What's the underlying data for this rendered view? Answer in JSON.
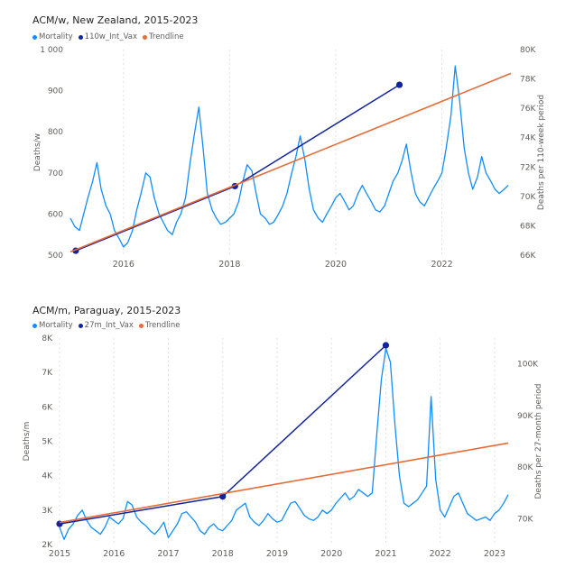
{
  "charts": [
    {
      "title": "ACM/w, New Zealand, 2015-2023",
      "legend": [
        {
          "label": "Mortality",
          "color": "#118DFF"
        },
        {
          "label": "110w_Int_Vax",
          "color": "#12239E"
        },
        {
          "label": "Trendline",
          "color": "#E66C37"
        }
      ]
    },
    {
      "title": "ACM/m, Paraguay, 2015-2023",
      "legend": [
        {
          "label": "Mortality",
          "color": "#118DFF"
        },
        {
          "label": "27m_Int_Vax",
          "color": "#12239E"
        },
        {
          "label": "Trendline",
          "color": "#E66C37"
        }
      ]
    }
  ],
  "chart_data": [
    {
      "type": "line",
      "title": "ACM/w, New Zealand, 2015-2023",
      "ylabel": "Deaths/w",
      "y2label": "Deaths per 110-week period",
      "ylim": [
        500,
        1000
      ],
      "y2lim": [
        66000,
        80000
      ],
      "xlim": [
        2015.0,
        2023.3
      ],
      "x_ticks": [
        "2016",
        "2018",
        "2020",
        "2022"
      ],
      "y_ticks": [
        "500",
        "600",
        "700",
        "800",
        "900",
        "1 000"
      ],
      "y2_ticks": [
        "66K",
        "68K",
        "70K",
        "72K",
        "74K",
        "76K",
        "78K",
        "80K"
      ],
      "legend_position": "top-left",
      "series": [
        {
          "name": "Mortality",
          "axis": "left",
          "x": [
            2015.0,
            2015.08,
            2015.17,
            2015.25,
            2015.33,
            2015.42,
            2015.5,
            2015.58,
            2015.67,
            2015.75,
            2015.83,
            2015.92,
            2016.0,
            2016.08,
            2016.17,
            2016.25,
            2016.33,
            2016.42,
            2016.5,
            2016.58,
            2016.67,
            2016.75,
            2016.83,
            2016.92,
            2017.0,
            2017.08,
            2017.17,
            2017.25,
            2017.33,
            2017.42,
            2017.5,
            2017.58,
            2017.67,
            2017.75,
            2017.83,
            2017.92,
            2018.0,
            2018.08,
            2018.17,
            2018.25,
            2018.33,
            2018.42,
            2018.5,
            2018.58,
            2018.67,
            2018.75,
            2018.83,
            2018.92,
            2019.0,
            2019.08,
            2019.17,
            2019.25,
            2019.33,
            2019.42,
            2019.5,
            2019.58,
            2019.67,
            2019.75,
            2019.83,
            2019.92,
            2020.0,
            2020.08,
            2020.17,
            2020.25,
            2020.33,
            2020.42,
            2020.5,
            2020.58,
            2020.67,
            2020.75,
            2020.83,
            2020.92,
            2021.0,
            2021.08,
            2021.17,
            2021.25,
            2021.33,
            2021.42,
            2021.5,
            2021.58,
            2021.67,
            2021.75,
            2021.83,
            2021.92,
            2022.0,
            2022.08,
            2022.17,
            2022.25,
            2022.33,
            2022.42,
            2022.5,
            2022.58,
            2022.67,
            2022.75,
            2022.83,
            2022.92,
            2023.0,
            2023.08,
            2023.17,
            2023.25
          ],
          "values": [
            590,
            570,
            560,
            600,
            640,
            680,
            725,
            660,
            620,
            600,
            560,
            540,
            520,
            530,
            560,
            610,
            650,
            700,
            690,
            640,
            600,
            580,
            560,
            550,
            580,
            600,
            640,
            720,
            790,
            860,
            760,
            650,
            610,
            590,
            575,
            580,
            590,
            600,
            630,
            680,
            720,
            705,
            650,
            600,
            590,
            575,
            580,
            600,
            620,
            650,
            700,
            740,
            790,
            730,
            660,
            610,
            590,
            580,
            600,
            620,
            640,
            650,
            630,
            610,
            620,
            650,
            670,
            650,
            630,
            610,
            605,
            620,
            650,
            680,
            700,
            730,
            770,
            700,
            650,
            630,
            620,
            640,
            660,
            680,
            700,
            760,
            840,
            960,
            880,
            760,
            700,
            660,
            690,
            740,
            700,
            680,
            660,
            650,
            660,
            670
          ]
        },
        {
          "name": "110w_Int_Vax",
          "axis": "right",
          "x": [
            2015.1,
            2018.1,
            2021.2
          ],
          "values": [
            66300,
            70700,
            77600
          ]
        },
        {
          "name": "Trendline",
          "axis": "left",
          "x": [
            2015.0,
            2023.3
          ],
          "values": [
            508,
            942
          ]
        }
      ]
    },
    {
      "type": "line",
      "title": "ACM/m, Paraguay, 2015-2023",
      "ylabel": "Deaths/m",
      "y2label": "Deaths per 27-month period",
      "ylim": [
        2000,
        8000
      ],
      "y2lim": [
        65000,
        105000
      ],
      "xlim": [
        2015.0,
        2023.25
      ],
      "x_ticks": [
        "2015",
        "2016",
        "2017",
        "2018",
        "2019",
        "2020",
        "2021",
        "2022",
        "2023"
      ],
      "y_ticks": [
        "2K",
        "3K",
        "4K",
        "5K",
        "6K",
        "7K",
        "8K"
      ],
      "y2_ticks": [
        "70K",
        "80K",
        "90K",
        "100K"
      ],
      "legend_position": "top-left",
      "series": [
        {
          "name": "Mortality",
          "axis": "left",
          "x": [
            2015.0,
            2015.083,
            2015.167,
            2015.25,
            2015.333,
            2015.417,
            2015.5,
            2015.583,
            2015.667,
            2015.75,
            2015.833,
            2015.917,
            2016.0,
            2016.083,
            2016.167,
            2016.25,
            2016.333,
            2016.417,
            2016.5,
            2016.583,
            2016.667,
            2016.75,
            2016.833,
            2016.917,
            2017.0,
            2017.083,
            2017.167,
            2017.25,
            2017.333,
            2017.417,
            2017.5,
            2017.583,
            2017.667,
            2017.75,
            2017.833,
            2017.917,
            2018.0,
            2018.083,
            2018.167,
            2018.25,
            2018.333,
            2018.417,
            2018.5,
            2018.583,
            2018.667,
            2018.75,
            2018.833,
            2018.917,
            2019.0,
            2019.083,
            2019.167,
            2019.25,
            2019.333,
            2019.417,
            2019.5,
            2019.583,
            2019.667,
            2019.75,
            2019.833,
            2019.917,
            2020.0,
            2020.083,
            2020.167,
            2020.25,
            2020.333,
            2020.417,
            2020.5,
            2020.583,
            2020.667,
            2020.75,
            2020.833,
            2020.917,
            2021.0,
            2021.083,
            2021.167,
            2021.25,
            2021.333,
            2021.417,
            2021.5,
            2021.583,
            2021.667,
            2021.75,
            2021.833,
            2021.917,
            2022.0,
            2022.083,
            2022.167,
            2022.25,
            2022.333,
            2022.417,
            2022.5,
            2022.583,
            2022.667,
            2022.75,
            2022.833,
            2022.917,
            2023.0,
            2023.083,
            2023.167,
            2023.25
          ],
          "values": [
            2500,
            2150,
            2450,
            2600,
            2850,
            3000,
            2700,
            2500,
            2400,
            2300,
            2500,
            2800,
            2700,
            2600,
            2750,
            3250,
            3150,
            2800,
            2650,
            2550,
            2400,
            2300,
            2450,
            2650,
            2200,
            2400,
            2600,
            2900,
            2950,
            2800,
            2650,
            2400,
            2300,
            2500,
            2600,
            2450,
            2400,
            2550,
            2700,
            3000,
            3100,
            3200,
            2800,
            2650,
            2550,
            2700,
            2900,
            2750,
            2650,
            2700,
            2950,
            3200,
            3250,
            3050,
            2850,
            2750,
            2700,
            2800,
            3000,
            2900,
            3000,
            3200,
            3350,
            3500,
            3300,
            3400,
            3600,
            3500,
            3400,
            3500,
            5200,
            6800,
            7700,
            7300,
            5500,
            4000,
            3200,
            3100,
            3200,
            3300,
            3500,
            3700,
            6300,
            3900,
            3000,
            2800,
            3100,
            3400,
            3500,
            3200,
            2900,
            2800,
            2700,
            2750,
            2800,
            2700,
            2900,
            3000,
            3200,
            3450
          ]
        },
        {
          "name": "27m_Int_Vax",
          "axis": "right",
          "x": [
            2015.0,
            2018.0,
            2021.0
          ],
          "values": [
            69000,
            74300,
            103600
          ]
        },
        {
          "name": "Trendline",
          "axis": "left",
          "x": [
            2015.0,
            2023.25
          ],
          "values": [
            2640,
            4950
          ]
        }
      ]
    }
  ]
}
